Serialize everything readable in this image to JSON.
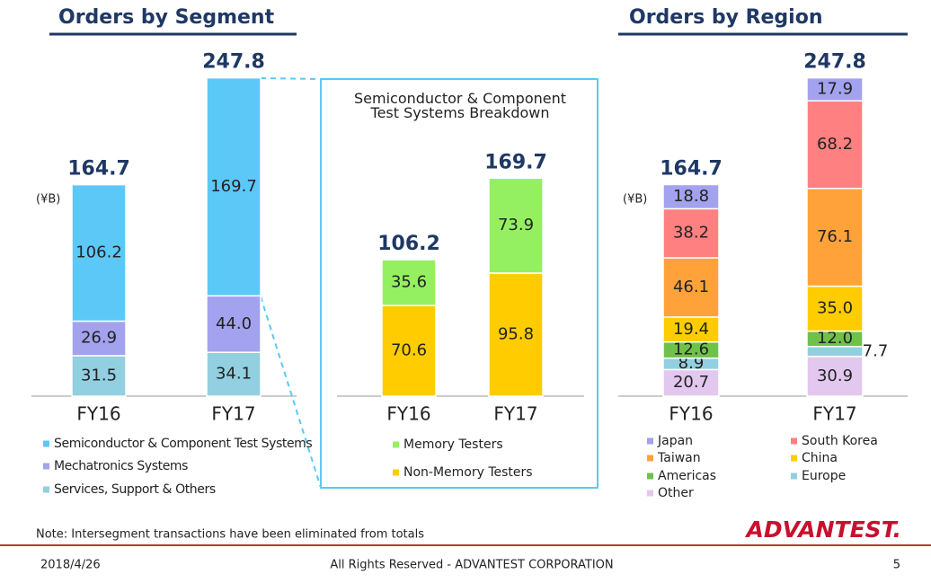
{
  "chart_data": [
    {
      "type": "bar",
      "stacked": true,
      "title": "Orders by Segment",
      "unit_label": "(¥B)",
      "categories": [
        "FY16",
        "FY17"
      ],
      "totals": [
        164.7,
        247.8
      ],
      "series": [
        {
          "name": "Semiconductor & Component Test Systems",
          "color": "#5cc8f7",
          "values": [
            106.2,
            169.7
          ],
          "value_labels": [
            "106.2",
            "169.7"
          ]
        },
        {
          "name": "Mechatronics Systems",
          "color": "#a2a2ee",
          "values": [
            26.9,
            44.0
          ],
          "value_labels": [
            "26.9",
            "44.0"
          ]
        },
        {
          "name": "Services, Support & Others",
          "color": "#92cfe0",
          "values": [
            31.5,
            34.1
          ],
          "value_labels": [
            "31.5",
            "34.1"
          ]
        }
      ]
    },
    {
      "type": "bar",
      "stacked": true,
      "title": "Semiconductor & Component Test Systems Breakdown",
      "categories": [
        "FY16",
        "FY17"
      ],
      "totals": [
        106.2,
        169.7
      ],
      "series": [
        {
          "name": "Memory Testers",
          "color": "#94f060",
          "values": [
            35.6,
            73.9
          ],
          "value_labels": [
            "35.6",
            "73.9"
          ]
        },
        {
          "name": "Non-Memory Testers",
          "color": "#ffcc00",
          "values": [
            70.6,
            95.8
          ],
          "value_labels": [
            "70.6",
            "95.8"
          ]
        }
      ]
    },
    {
      "type": "bar",
      "stacked": true,
      "title": "Orders by Region",
      "unit_label": "(¥B)",
      "categories": [
        "FY16",
        "FY17"
      ],
      "totals": [
        164.7,
        247.8
      ],
      "series": [
        {
          "name": "Japan",
          "color": "#a2a2ee",
          "values": [
            18.8,
            17.9
          ],
          "value_labels": [
            "18.8",
            "17.9"
          ]
        },
        {
          "name": "South Korea",
          "color": "#ff8080",
          "values": [
            38.2,
            68.2
          ],
          "value_labels": [
            "38.2",
            "68.2"
          ]
        },
        {
          "name": "Taiwan",
          "color": "#ffa23a",
          "values": [
            46.1,
            76.1
          ],
          "value_labels": [
            "46.1",
            "76.1"
          ]
        },
        {
          "name": "China",
          "color": "#ffcc00",
          "values": [
            19.4,
            35.0
          ],
          "value_labels": [
            "19.4",
            "35.0"
          ]
        },
        {
          "name": "Americas",
          "color": "#70c04c",
          "values": [
            12.6,
            12.0
          ],
          "value_labels": [
            "12.6",
            "12.0"
          ]
        },
        {
          "name": "Europe",
          "color": "#92cfe0",
          "values": [
            8.9,
            7.7
          ],
          "value_labels": [
            "8.9",
            "7.7"
          ]
        },
        {
          "name": "Other",
          "color": "#e2c8ee",
          "values": [
            20.7,
            30.9
          ],
          "value_labels": [
            "20.7",
            "30.9"
          ]
        }
      ]
    }
  ],
  "note": "Note: Intersegment transactions have been eliminated from totals",
  "logo": "ADVANTEST.",
  "footer": {
    "date": "2018/4/26",
    "copyright": "All Rights Reserved - ADVANTEST CORPORATION",
    "page": "5"
  }
}
